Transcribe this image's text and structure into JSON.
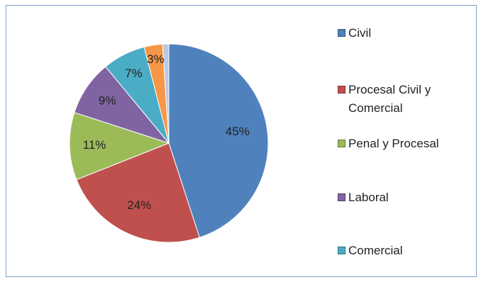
{
  "chart_data": {
    "type": "pie",
    "title": "",
    "slices": [
      {
        "name": "Civil",
        "value": 45,
        "label": "45%",
        "color": "#4f81bd"
      },
      {
        "name": "Procesal Civil y Comercial",
        "value": 24,
        "label": "24%",
        "color": "#c0504d"
      },
      {
        "name": "Penal y Procesal",
        "value": 11,
        "label": "11%",
        "color": "#9bbb59"
      },
      {
        "name": "Laboral",
        "value": 9,
        "label": "9%",
        "color": "#8064a2"
      },
      {
        "name": "Comercial",
        "value": 7,
        "label": "7%",
        "color": "#4bacc6"
      },
      {
        "name": "",
        "value": 3,
        "label": "3%",
        "color": "#f79646"
      },
      {
        "name": "",
        "value": 1,
        "label": "",
        "color": "#b8c9e6"
      }
    ],
    "legend": {
      "position": "right",
      "entries": [
        "Civil",
        "Procesal Civil y Comercial",
        "Penal y Procesal",
        "Laboral",
        "Comercial"
      ]
    }
  }
}
